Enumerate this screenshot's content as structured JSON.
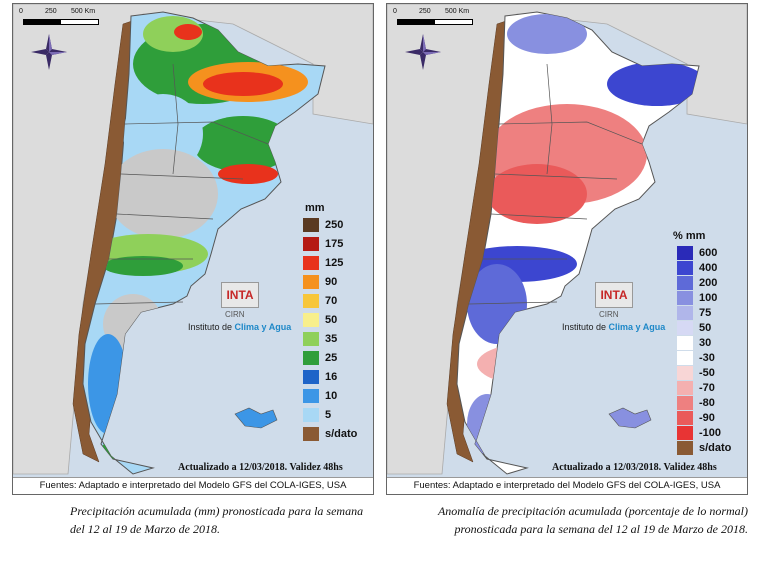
{
  "left_panel": {
    "scale_labels": [
      "0",
      "250",
      "500 Km"
    ],
    "legend_title": "mm",
    "legend": [
      {
        "label": "250",
        "color": "#5a3a22"
      },
      {
        "label": "175",
        "color": "#b51a14"
      },
      {
        "label": "125",
        "color": "#e8321c"
      },
      {
        "label": "90",
        "color": "#f5911e"
      },
      {
        "label": "70",
        "color": "#f7c63a"
      },
      {
        "label": "50",
        "color": "#f8ef8c"
      },
      {
        "label": "35",
        "color": "#8fd05a"
      },
      {
        "label": "25",
        "color": "#2f9e3a"
      },
      {
        "label": "16",
        "color": "#1e64c8"
      },
      {
        "label": "10",
        "color": "#3c96e6"
      },
      {
        "label": "5",
        "color": "#a8d8f5"
      },
      {
        "label": "s/dato",
        "color": "#8a5a34"
      }
    ],
    "logo_text": "INTA",
    "logo_sub": "CIRN",
    "institute_prefix": "Instituto de ",
    "institute_highlight": "Clima y Agua",
    "updated": "Actualizado a 12/03/2018. Validez 48hs",
    "sources": "Fuentes: Adaptado e interpretado del Modelo GFS del COLA-IGES, USA",
    "caption": "Precipitación acumulada (mm) pronosticada para la semana del 12 al 19 de Marzo de 2018."
  },
  "right_panel": {
    "scale_labels": [
      "0",
      "250",
      "500 Km"
    ],
    "legend_title": "% mm",
    "legend": [
      {
        "label": "600",
        "color": "#2a2ab8"
      },
      {
        "label": "400",
        "color": "#3c46d0"
      },
      {
        "label": "200",
        "color": "#5e6ad8"
      },
      {
        "label": "100",
        "color": "#8890e0"
      },
      {
        "label": "75",
        "color": "#b0b6ea"
      },
      {
        "label": "50",
        "color": "#d6d9f4"
      },
      {
        "label": "30",
        "color": "#ffffff"
      },
      {
        "label": "-30",
        "color": "#ffffff"
      },
      {
        "label": "-50",
        "color": "#f8d6d6"
      },
      {
        "label": "-70",
        "color": "#f4b0b0"
      },
      {
        "label": "-80",
        "color": "#ee8080"
      },
      {
        "label": "-90",
        "color": "#ea5a5a"
      },
      {
        "label": "-100",
        "color": "#e83434"
      },
      {
        "label": "s/dato",
        "color": "#8a5a34"
      }
    ],
    "logo_text": "INTA",
    "logo_sub": "CIRN",
    "institute_prefix": "Instituto de ",
    "institute_highlight": "Clima y Agua",
    "updated": "Actualizado a 12/03/2018. Validez 48hs",
    "sources": "Fuentes: Adaptado e interpretado del Modelo GFS del COLA-IGES, USA",
    "caption": "Anomalía de precipitación acumulada (porcentaje de lo normal) pronosticada para la semana del 12 al 19 de Marzo de 2018."
  }
}
